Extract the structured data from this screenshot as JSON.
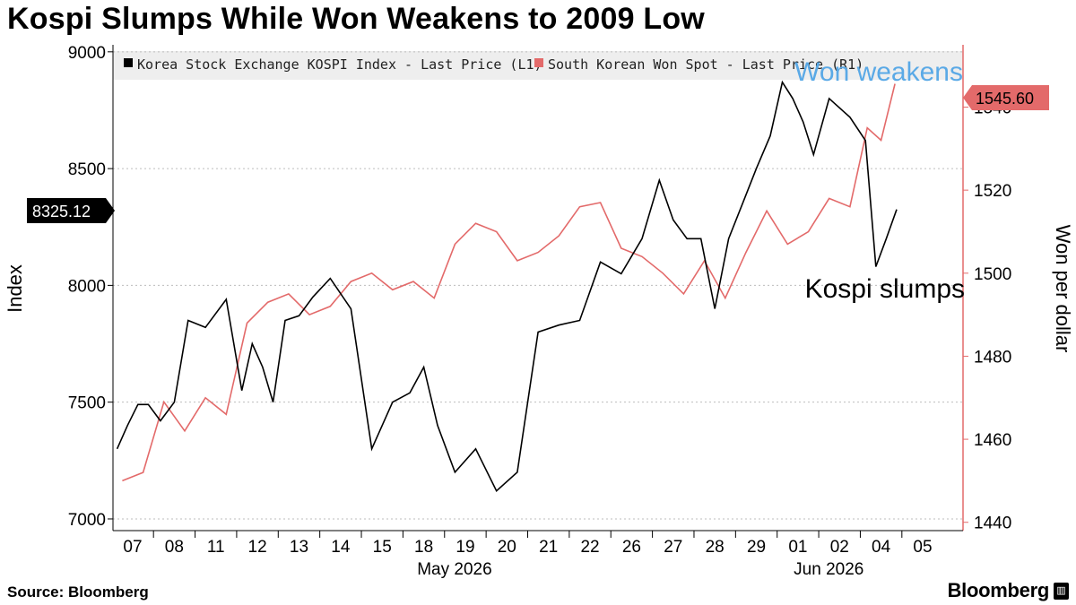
{
  "title": "Kospi Slumps While Won Weakens to 2009 Low",
  "footer": {
    "source": "Source: Bloomberg",
    "brand": "Bloomberg"
  },
  "colors": {
    "kospi": "#000000",
    "won": "#e36a6a",
    "won_annotation": "#5aa9e6",
    "plot_bg": "#ffffff",
    "grid": "#bdbdbd",
    "legend_bg": "#eeeeee"
  },
  "chart_data": {
    "type": "line",
    "title": "Kospi Slumps While Won Weakens to 2009 Low",
    "x_ticks": [
      "07",
      "08",
      "11",
      "12",
      "13",
      "14",
      "15",
      "18",
      "19",
      "20",
      "21",
      "22",
      "26",
      "27",
      "28",
      "29",
      "01",
      "02",
      "04",
      "05"
    ],
    "x_month_labels": [
      {
        "label": "May 2026",
        "tick": "19"
      },
      {
        "label": "Jun 2026",
        "tick": "02"
      }
    ],
    "y_left": {
      "label": "Index",
      "ticks": [
        7000,
        7500,
        8000,
        8500,
        9000
      ],
      "lim": [
        6950,
        9030
      ]
    },
    "y_right": {
      "label": "Won per dollar",
      "ticks": [
        1440,
        1460,
        1480,
        1500,
        1520,
        1540
      ],
      "lim": [
        1438,
        1555
      ]
    },
    "grid": "horizontal dotted",
    "legend_position": "top",
    "series": [
      {
        "name": "Korea Stock Exchange KOSPI Index - Last Price (L1)",
        "axis": "left",
        "last_value": "8325.12",
        "points": [
          [
            "07",
            7300
          ],
          [
            "07",
            7400
          ],
          [
            "07",
            7490
          ],
          [
            "07",
            7490
          ],
          [
            "08",
            7420
          ],
          [
            "08",
            7500
          ],
          [
            "08",
            7850
          ],
          [
            "11",
            7820
          ],
          [
            "11",
            7940
          ],
          [
            "12",
            7550
          ],
          [
            "12",
            7750
          ],
          [
            "12",
            7650
          ],
          [
            "12",
            7500
          ],
          [
            "13",
            7850
          ],
          [
            "13",
            7870
          ],
          [
            "13",
            7950
          ],
          [
            "14",
            8030
          ],
          [
            "14",
            7900
          ],
          [
            "15",
            7300
          ],
          [
            "15",
            7500
          ],
          [
            "18",
            7540
          ],
          [
            "18",
            7650
          ],
          [
            "18",
            7400
          ],
          [
            "19",
            7200
          ],
          [
            "19",
            7300
          ],
          [
            "20",
            7120
          ],
          [
            "20",
            7200
          ],
          [
            "21",
            7800
          ],
          [
            "21",
            7830
          ],
          [
            "22",
            7850
          ],
          [
            "22",
            8100
          ],
          [
            "26",
            8050
          ],
          [
            "26",
            8200
          ],
          [
            "27",
            8450
          ],
          [
            "27",
            8280
          ],
          [
            "27",
            8200
          ],
          [
            "28",
            8200
          ],
          [
            "28",
            7900
          ],
          [
            "28",
            8200
          ],
          [
            "29",
            8350
          ],
          [
            "29",
            8500
          ],
          [
            "29",
            8640
          ],
          [
            "01",
            8870
          ],
          [
            "01",
            8800
          ],
          [
            "01",
            8700
          ],
          [
            "01",
            8560
          ],
          [
            "02",
            8800
          ],
          [
            "02",
            8720
          ],
          [
            "04",
            8620
          ],
          [
            "04",
            8080
          ],
          [
            "04",
            8200
          ],
          [
            "04",
            8325
          ]
        ]
      },
      {
        "name": "South Korean Won Spot - Last Price (R1)",
        "axis": "right",
        "last_value": "1545.60",
        "points": [
          [
            "07",
            1450
          ],
          [
            "07",
            1452
          ],
          [
            "08",
            1469
          ],
          [
            "08",
            1462
          ],
          [
            "11",
            1470
          ],
          [
            "11",
            1466
          ],
          [
            "12",
            1488
          ],
          [
            "12",
            1493
          ],
          [
            "13",
            1495
          ],
          [
            "13",
            1490
          ],
          [
            "14",
            1492
          ],
          [
            "14",
            1498
          ],
          [
            "15",
            1500
          ],
          [
            "15",
            1496
          ],
          [
            "18",
            1498
          ],
          [
            "18",
            1494
          ],
          [
            "19",
            1507
          ],
          [
            "19",
            1512
          ],
          [
            "20",
            1510
          ],
          [
            "20",
            1503
          ],
          [
            "21",
            1505
          ],
          [
            "21",
            1509
          ],
          [
            "22",
            1516
          ],
          [
            "22",
            1517
          ],
          [
            "26",
            1506
          ],
          [
            "26",
            1504
          ],
          [
            "27",
            1500
          ],
          [
            "27",
            1495
          ],
          [
            "28",
            1503
          ],
          [
            "28",
            1494
          ],
          [
            "29",
            1505
          ],
          [
            "29",
            1515
          ],
          [
            "01",
            1507
          ],
          [
            "01",
            1510
          ],
          [
            "02",
            1518
          ],
          [
            "02",
            1516
          ],
          [
            "04",
            1535
          ],
          [
            "04",
            1532
          ],
          [
            "04",
            1545.6
          ]
        ]
      }
    ],
    "annotations": [
      "Won weakens",
      "Kospi slumps"
    ]
  }
}
